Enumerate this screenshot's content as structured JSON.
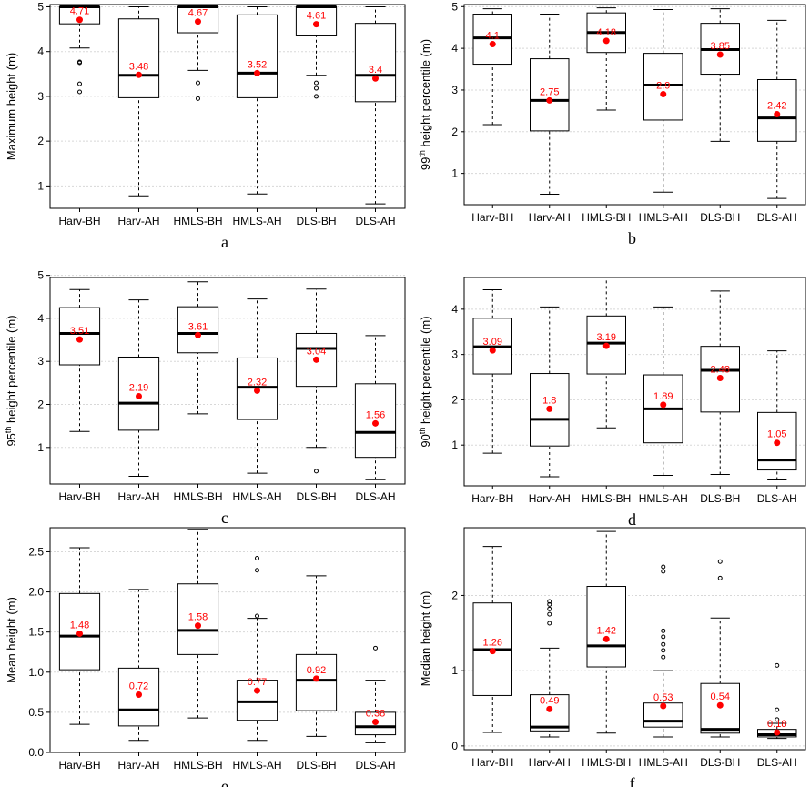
{
  "colors": {
    "mean": "#ff0000",
    "box": "#000000",
    "grid": "#d8d8d8",
    "frame": "#000000"
  },
  "chart_data": [
    {
      "id": "a",
      "type": "boxplot",
      "panel_label": "a",
      "ylabel": "Maximum height (m)",
      "ylabel_parts": [
        "Maximum height (m)"
      ],
      "categories": [
        "Harv-BH",
        "Harv-AH",
        "HMLS-BH",
        "HMLS-AH",
        "DLS-BH",
        "DLS-AH"
      ],
      "ylim": [
        0.5,
        5.05
      ],
      "yticks": [
        1,
        2,
        3,
        4,
        5
      ],
      "grid": true,
      "boxes": [
        {
          "low": 4.08,
          "q1": 4.62,
          "median": 5.0,
          "q3": 5.0,
          "high": 5.0,
          "mean": 4.71,
          "mean_label": "4.71",
          "outliers": [
            3.77,
            3.75,
            3.28,
            3.1
          ]
        },
        {
          "low": 0.78,
          "q1": 2.97,
          "median": 3.47,
          "q3": 4.73,
          "high": 5.0,
          "mean": 3.48,
          "mean_label": "3.48",
          "outliers": []
        },
        {
          "low": 3.58,
          "q1": 4.42,
          "median": 5.0,
          "q3": 5.0,
          "high": 5.0,
          "mean": 4.67,
          "mean_label": "4.67",
          "outliers": [
            3.3,
            2.95
          ]
        },
        {
          "low": 0.82,
          "q1": 2.97,
          "median": 3.52,
          "q3": 4.82,
          "high": 5.0,
          "mean": 3.52,
          "mean_label": "3.52",
          "outliers": []
        },
        {
          "low": 3.47,
          "q1": 4.35,
          "median": 5.0,
          "q3": 5.0,
          "high": 5.0,
          "mean": 4.61,
          "mean_label": "4.61",
          "outliers": [
            3.3,
            3.18,
            3.0
          ]
        },
        {
          "low": 0.6,
          "q1": 2.88,
          "median": 3.47,
          "q3": 4.63,
          "high": 5.0,
          "mean": 3.4,
          "mean_label": "3.4",
          "outliers": []
        }
      ]
    },
    {
      "id": "b",
      "type": "boxplot",
      "panel_label": "b",
      "ylabel": "99th height percentile (m)",
      "ylabel_parts": [
        "99",
        "th",
        " height percentile (m)"
      ],
      "categories": [
        "Harv-BH",
        "Harv-AH",
        "HMLS-BH",
        "HMLS-AH",
        "DLS-BH",
        "DLS-AH"
      ],
      "ylim": [
        0.25,
        5.05
      ],
      "yticks": [
        1,
        2,
        3,
        4,
        5
      ],
      "grid": true,
      "boxes": [
        {
          "low": 2.17,
          "q1": 3.62,
          "median": 4.25,
          "q3": 4.82,
          "high": 4.95,
          "mean": 4.1,
          "mean_label": "4.1",
          "outliers": []
        },
        {
          "low": 0.5,
          "q1": 2.02,
          "median": 2.75,
          "q3": 3.75,
          "high": 4.82,
          "mean": 2.75,
          "mean_label": "2.75",
          "outliers": []
        },
        {
          "low": 2.52,
          "q1": 3.9,
          "median": 4.38,
          "q3": 4.85,
          "high": 4.97,
          "mean": 4.18,
          "mean_label": "4.18",
          "outliers": []
        },
        {
          "low": 0.55,
          "q1": 2.28,
          "median": 3.12,
          "q3": 3.88,
          "high": 4.93,
          "mean": 2.9,
          "mean_label": "2.9",
          "outliers": []
        },
        {
          "low": 1.77,
          "q1": 3.38,
          "median": 3.97,
          "q3": 4.6,
          "high": 4.95,
          "mean": 3.85,
          "mean_label": "3.85",
          "outliers": []
        },
        {
          "low": 0.4,
          "q1": 1.77,
          "median": 2.33,
          "q3": 3.25,
          "high": 4.67,
          "mean": 2.42,
          "mean_label": "2.42",
          "outliers": []
        }
      ]
    },
    {
      "id": "c",
      "type": "boxplot",
      "panel_label": "c",
      "ylabel": "95th height percentile (m)",
      "ylabel_parts": [
        "95",
        "th",
        " height percentile (m)"
      ],
      "categories": [
        "Harv-BH",
        "Harv-AH",
        "HMLS-BH",
        "HMLS-AH",
        "DLS-BH",
        "DLS-AH"
      ],
      "ylim": [
        0.15,
        4.95
      ],
      "yticks": [
        1,
        2,
        3,
        4,
        5
      ],
      "grid": true,
      "boxes": [
        {
          "low": 1.37,
          "q1": 2.92,
          "median": 3.65,
          "q3": 4.25,
          "high": 4.67,
          "mean": 3.51,
          "mean_label": "3.51",
          "outliers": []
        },
        {
          "low": 0.33,
          "q1": 1.4,
          "median": 2.03,
          "q3": 3.1,
          "high": 4.43,
          "mean": 2.19,
          "mean_label": "2.19",
          "outliers": []
        },
        {
          "low": 1.78,
          "q1": 3.2,
          "median": 3.65,
          "q3": 4.27,
          "high": 4.85,
          "mean": 3.61,
          "mean_label": "3.61",
          "outliers": []
        },
        {
          "low": 0.4,
          "q1": 1.65,
          "median": 2.4,
          "q3": 3.08,
          "high": 4.45,
          "mean": 2.32,
          "mean_label": "2.32",
          "outliers": []
        },
        {
          "low": 1.0,
          "q1": 2.42,
          "median": 3.3,
          "q3": 3.65,
          "high": 4.68,
          "mean": 3.04,
          "mean_label": "3.04",
          "outliers": [
            0.45
          ]
        },
        {
          "low": 0.25,
          "q1": 0.77,
          "median": 1.35,
          "q3": 2.48,
          "high": 3.6,
          "mean": 1.56,
          "mean_label": "1.56",
          "outliers": []
        }
      ]
    },
    {
      "id": "d",
      "type": "boxplot",
      "panel_label": "d",
      "ylabel": "90th height percentile (m)",
      "ylabel_parts": [
        "90",
        "th",
        " height percentile (m)"
      ],
      "categories": [
        "Harv-BH",
        "Harv-AH",
        "HMLS-BH",
        "HMLS-AH",
        "DLS-BH",
        "DLS-AH"
      ],
      "ylim": [
        0.1,
        4.7
      ],
      "yticks": [
        1,
        2,
        3,
        4
      ],
      "grid": true,
      "boxes": [
        {
          "low": 0.82,
          "q1": 2.57,
          "median": 3.17,
          "q3": 3.8,
          "high": 4.43,
          "mean": 3.09,
          "mean_label": "3.09",
          "outliers": []
        },
        {
          "low": 0.3,
          "q1": 0.98,
          "median": 1.57,
          "q3": 2.58,
          "high": 4.05,
          "mean": 1.8,
          "mean_label": "1.8",
          "outliers": []
        },
        {
          "low": 1.38,
          "q1": 2.57,
          "median": 3.25,
          "q3": 3.85,
          "high": 4.7,
          "mean": 3.19,
          "mean_label": "3.19",
          "outliers": []
        },
        {
          "low": 0.33,
          "q1": 1.05,
          "median": 1.8,
          "q3": 2.55,
          "high": 4.05,
          "mean": 1.89,
          "mean_label": "1.89",
          "outliers": []
        },
        {
          "low": 0.35,
          "q1": 1.73,
          "median": 2.65,
          "q3": 3.18,
          "high": 4.4,
          "mean": 2.48,
          "mean_label": "2.48",
          "outliers": []
        },
        {
          "low": 0.23,
          "q1": 0.45,
          "median": 0.67,
          "q3": 1.72,
          "high": 3.08,
          "mean": 1.05,
          "mean_label": "1.05",
          "outliers": []
        }
      ]
    },
    {
      "id": "e",
      "type": "boxplot",
      "panel_label": "e",
      "ylabel": "Mean height (m)",
      "ylabel_parts": [
        "Mean height (m)"
      ],
      "categories": [
        "Harv-BH",
        "Harv-AH",
        "HMLS-BH",
        "HMLS-AH",
        "DLS-BH",
        "DLS-AH"
      ],
      "ylim": [
        0.0,
        2.8
      ],
      "yticks": [
        0.0,
        0.5,
        1.0,
        1.5,
        2.0,
        2.5
      ],
      "ytick_labels": [
        "0.0",
        "0.5",
        "1.0",
        "1.5",
        "2.0",
        "2.5"
      ],
      "grid": true,
      "boxes": [
        {
          "low": 0.35,
          "q1": 1.03,
          "median": 1.45,
          "q3": 1.98,
          "high": 2.55,
          "mean": 1.48,
          "mean_label": "1.48",
          "outliers": []
        },
        {
          "low": 0.15,
          "q1": 0.33,
          "median": 0.53,
          "q3": 1.05,
          "high": 2.03,
          "mean": 0.72,
          "mean_label": "0.72",
          "outliers": []
        },
        {
          "low": 0.43,
          "q1": 1.22,
          "median": 1.52,
          "q3": 2.1,
          "high": 2.78,
          "mean": 1.58,
          "mean_label": "1.58",
          "outliers": []
        },
        {
          "low": 0.15,
          "q1": 0.4,
          "median": 0.63,
          "q3": 0.9,
          "high": 1.67,
          "mean": 0.77,
          "mean_label": "0.77",
          "outliers": [
            2.42,
            2.27,
            1.7
          ]
        },
        {
          "low": 0.2,
          "q1": 0.52,
          "median": 0.9,
          "q3": 1.22,
          "high": 2.2,
          "mean": 0.92,
          "mean_label": "0.92",
          "outliers": []
        },
        {
          "low": 0.12,
          "q1": 0.22,
          "median": 0.32,
          "q3": 0.5,
          "high": 0.9,
          "mean": 0.38,
          "mean_label": "0.38",
          "outliers": [
            1.3
          ]
        }
      ]
    },
    {
      "id": "f",
      "type": "boxplot",
      "panel_label": "f",
      "ylabel": "Median height (m)",
      "ylabel_parts": [
        "Median height (m)"
      ],
      "categories": [
        "Harv-BH",
        "Harv-AH",
        "HMLS-BH",
        "HMLS-AH",
        "DLS-BH",
        "DLS-AH"
      ],
      "ylim": [
        -0.05,
        2.9
      ],
      "yticks": [
        0,
        1,
        2
      ],
      "grid": true,
      "boxes": [
        {
          "low": 0.18,
          "q1": 0.67,
          "median": 1.28,
          "q3": 1.9,
          "high": 2.65,
          "mean": 1.26,
          "mean_label": "1.26",
          "outliers": []
        },
        {
          "low": 0.12,
          "q1": 0.2,
          "median": 0.25,
          "q3": 0.68,
          "high": 1.3,
          "mean": 0.49,
          "mean_label": "0.49",
          "outliers": [
            1.92,
            1.88,
            1.82,
            1.75,
            1.63
          ]
        },
        {
          "low": 0.17,
          "q1": 1.05,
          "median": 1.33,
          "q3": 2.12,
          "high": 2.85,
          "mean": 1.42,
          "mean_label": "1.42",
          "outliers": []
        },
        {
          "low": 0.12,
          "q1": 0.25,
          "median": 0.33,
          "q3": 0.57,
          "high": 1.0,
          "mean": 0.53,
          "mean_label": "0.53",
          "outliers": [
            2.38,
            2.32,
            1.53,
            1.45,
            1.35,
            1.27,
            1.18
          ]
        },
        {
          "low": 0.12,
          "q1": 0.17,
          "median": 0.22,
          "q3": 0.83,
          "high": 1.7,
          "mean": 0.54,
          "mean_label": "0.54",
          "outliers": [
            2.45,
            2.23
          ]
        },
        {
          "low": 0.1,
          "q1": 0.12,
          "median": 0.15,
          "q3": 0.22,
          "high": 0.3,
          "mean": 0.18,
          "mean_label": "0.18",
          "outliers": [
            1.07,
            0.48,
            0.35
          ]
        }
      ]
    }
  ]
}
